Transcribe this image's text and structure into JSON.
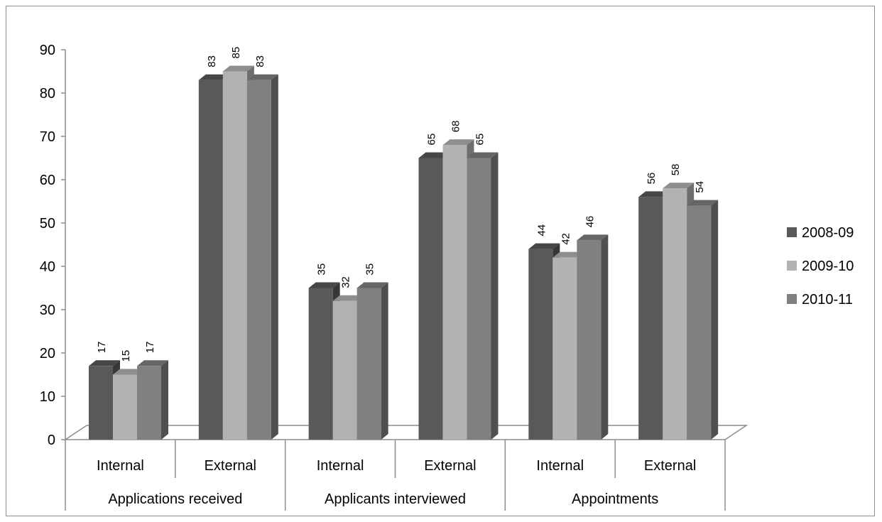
{
  "chart_data": {
    "type": "bar",
    "variant": "3d-clustered-column",
    "title": "",
    "xlabel": "",
    "ylabel": "",
    "ylim": [
      0,
      90
    ],
    "yticks": [
      0,
      10,
      20,
      30,
      40,
      50,
      60,
      70,
      80,
      90
    ],
    "grid": false,
    "legend_position": "right",
    "groups": [
      {
        "label": "Applications received",
        "categories": [
          "Internal",
          "External"
        ]
      },
      {
        "label": "Applicants interviewed",
        "categories": [
          "Internal",
          "External"
        ]
      },
      {
        "label": "Appointments",
        "categories": [
          "Internal",
          "External"
        ]
      }
    ],
    "categories": [
      "Internal",
      "External",
      "Internal",
      "External",
      "Internal",
      "External"
    ],
    "series": [
      {
        "name": "2008-09",
        "color": "#595959",
        "values": [
          17,
          83,
          35,
          65,
          44,
          56
        ]
      },
      {
        "name": "2009-10",
        "color": "#b2b2b2",
        "values": [
          15,
          85,
          32,
          68,
          42,
          58
        ]
      },
      {
        "name": "2010-11",
        "color": "#808080",
        "values": [
          17,
          83,
          35,
          65,
          46,
          54
        ]
      }
    ]
  }
}
